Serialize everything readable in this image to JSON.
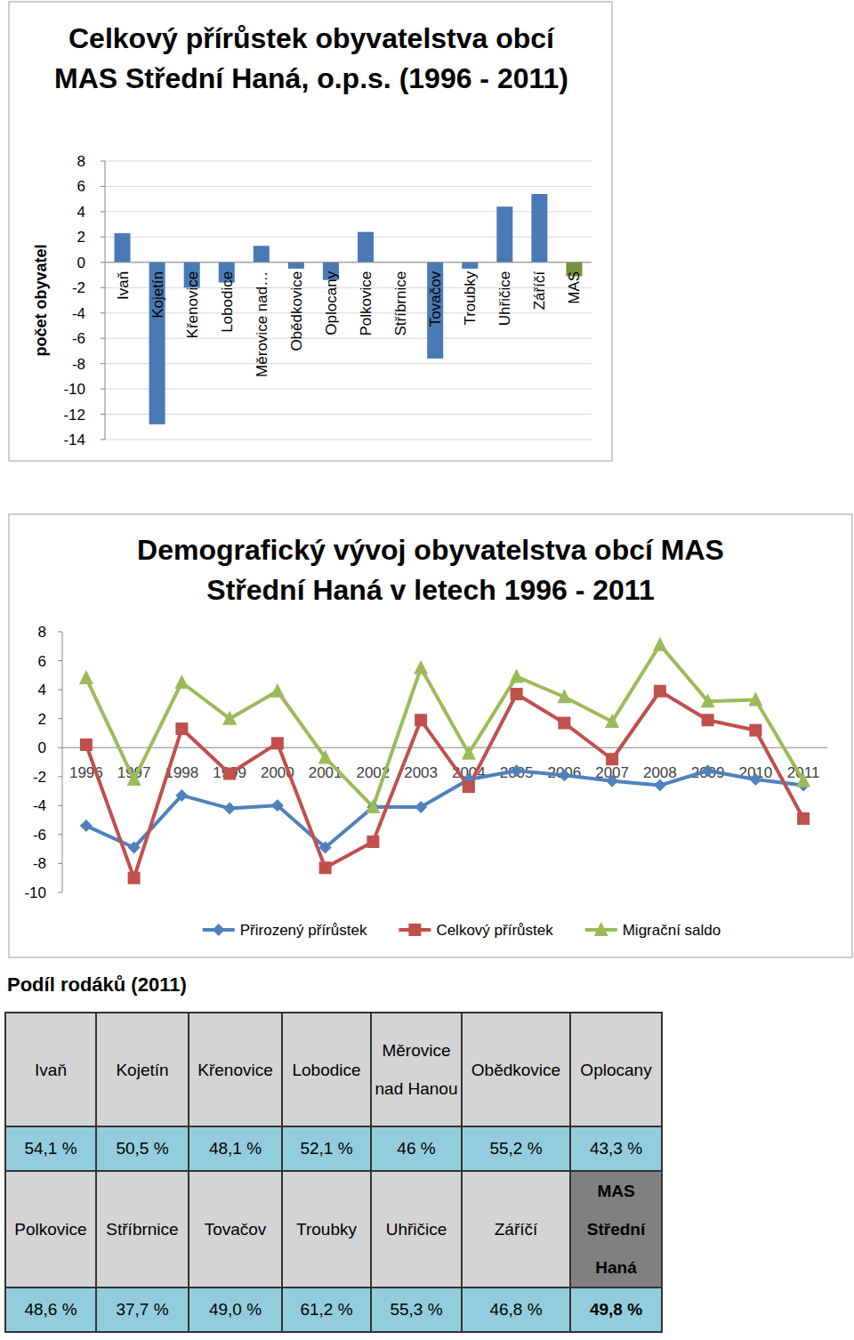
{
  "chart_data": [
    {
      "type": "bar",
      "title": "Celkový přírůstek obyvatelstva obcí MAS Střední Haná, o.p.s. (1996 - 2011)",
      "ylabel": "počet obyvatel",
      "categories": [
        "Ivaň",
        "Kojetín",
        "Křenovice",
        "Lobodice",
        "Měrovice nad…",
        "Obědkovice",
        "Oplocany",
        "Polkovice",
        "Stříbrnice",
        "Tovačov",
        "Troubky",
        "Uhřičice",
        "Záříčí",
        "MAS"
      ],
      "values": [
        2.3,
        -12.8,
        -2.0,
        -1.6,
        1.3,
        -0.5,
        -1.4,
        2.4,
        0,
        -7.6,
        -0.5,
        4.4,
        5.4,
        -1.1
      ],
      "colors": [
        "#4a7ab5",
        "#4a7ab5",
        "#4a7ab5",
        "#4a7ab5",
        "#4a7ab5",
        "#4a7ab5",
        "#4a7ab5",
        "#4a7ab5",
        "#4a7ab5",
        "#4a7ab5",
        "#4a7ab5",
        "#4a7ab5",
        "#4a7ab5",
        "#77933c"
      ],
      "ylim": [
        -14,
        8
      ],
      "yticks": [
        -14,
        -12,
        -10,
        -8,
        -6,
        -4,
        -2,
        0,
        2,
        4,
        6,
        8
      ],
      "grid": true
    },
    {
      "type": "line",
      "title": "Demografický vývoj obyvatelstva obcí MAS Střední Haná v letech 1996 - 2011",
      "categories": [
        "1996",
        "1997",
        "1998",
        "1999",
        "2000",
        "2001",
        "2002",
        "2003",
        "2004",
        "2005",
        "2006",
        "2007",
        "2008",
        "2009",
        "2010",
        "2011"
      ],
      "series": [
        {
          "name": "Přirozený přírůstek",
          "color": "#4f81bd",
          "marker": "diamond",
          "values": [
            -5.4,
            -6.9,
            -3.3,
            -4.2,
            -4.0,
            -6.9,
            -4.1,
            -4.1,
            -2.2,
            -1.6,
            -1.9,
            -2.3,
            -2.6,
            -1.6,
            -2.2,
            -2.6
          ]
        },
        {
          "name": "Celkový přírůstek",
          "color": "#c0504d",
          "marker": "square",
          "values": [
            0.2,
            -9.0,
            1.3,
            -1.8,
            0.3,
            -8.3,
            -6.5,
            1.9,
            -2.7,
            3.7,
            1.7,
            -0.8,
            3.9,
            1.9,
            1.2,
            -4.9
          ]
        },
        {
          "name": "Migrační saldo",
          "color": "#9bbb59",
          "marker": "triangle",
          "values": [
            4.8,
            -2.2,
            4.5,
            2.0,
            3.9,
            -0.7,
            -4.1,
            5.5,
            -0.4,
            4.9,
            3.5,
            1.8,
            7.1,
            3.2,
            3.3,
            -2.3
          ]
        }
      ],
      "ylim": [
        -10,
        8
      ],
      "yticks": [
        -10,
        -8,
        -6,
        -4,
        -2,
        0,
        2,
        4,
        6,
        8
      ],
      "grid": false,
      "legend": "bottom"
    }
  ],
  "table": {
    "title": "Podíl rodáků (2011)",
    "rows": [
      [
        "Ivaň",
        "Kojetín",
        "Křenovice",
        "Lobodice",
        "Měrovice nad Hanou",
        "Obědkovice",
        "Oplocany"
      ],
      [
        "54,1 %",
        "50,5 %",
        "48,1 %",
        "52,1 %",
        "46 %",
        "55,2 %",
        "43,3 %"
      ],
      [
        "Polkovice",
        "Stříbrnice",
        "Tovačov",
        "Troubky",
        "Uhřičice",
        "Záříčí",
        "MAS Střední Haná"
      ],
      [
        "48,6 %",
        "37,7 %",
        "49,0 %",
        "61,2 %",
        "55,3 %",
        "46,8 %",
        "49,8 %"
      ]
    ]
  }
}
